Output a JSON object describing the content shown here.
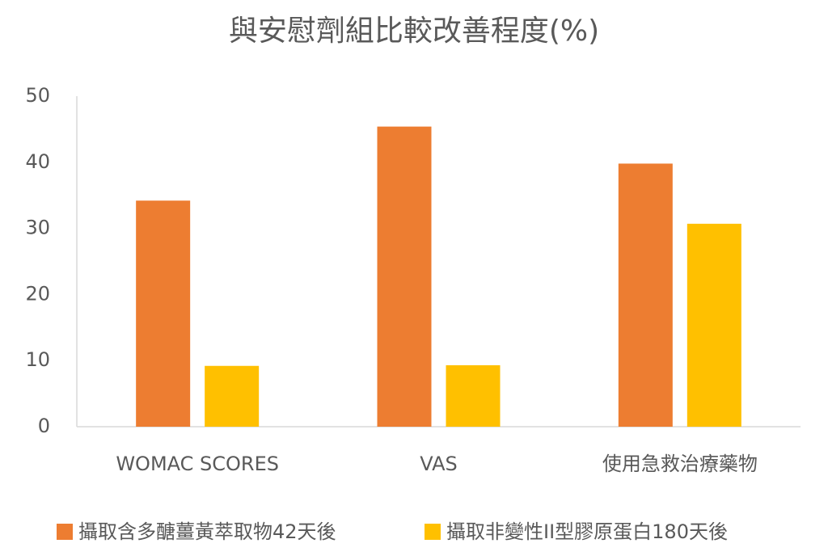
{
  "chart_data": {
    "type": "bar",
    "title": "與安慰劑組比較改善程度(%)",
    "categories": [
      "WOMAC SCORES",
      "VAS",
      "使用急救治療藥物"
    ],
    "series": [
      {
        "name": "攝取含多醣薑黃萃取物42天後",
        "color": "#ed7d31",
        "values": [
          34.2,
          45.4,
          39.8
        ]
      },
      {
        "name": "攝取非變性II型膠原蛋白180天後",
        "color": "#ffc000",
        "values": [
          9.2,
          9.3,
          30.7
        ]
      }
    ],
    "ylim": [
      0,
      50
    ],
    "yticks": [
      0,
      10,
      20,
      30,
      40,
      50
    ],
    "grid": false,
    "legend": "bottom"
  }
}
